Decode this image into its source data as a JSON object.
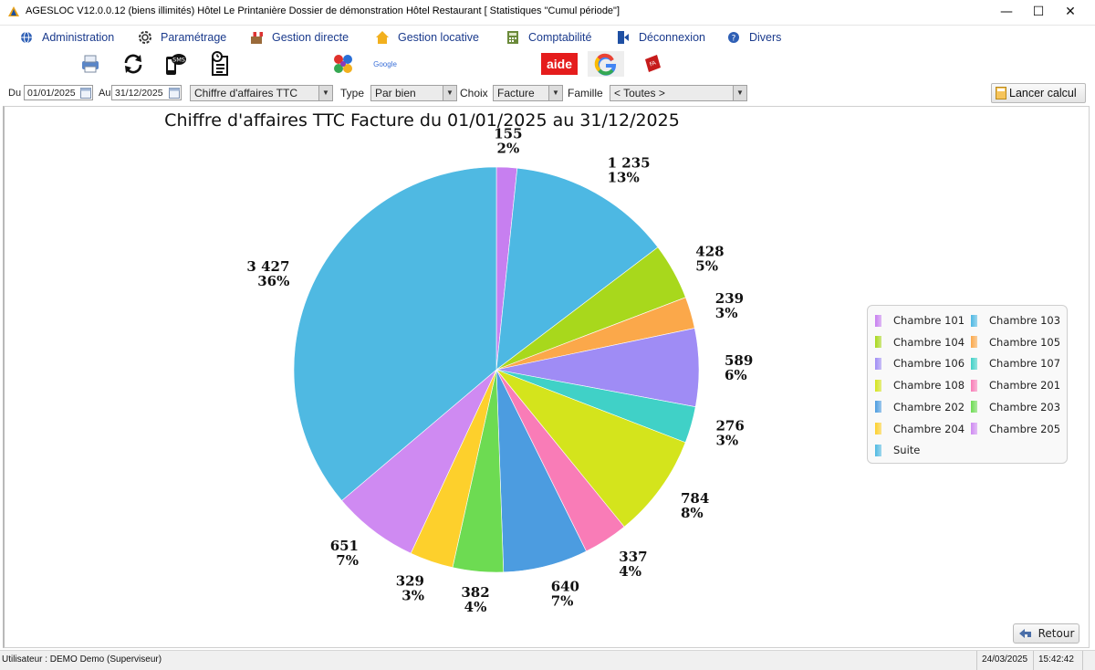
{
  "window": {
    "title": "AGESLOC V12.0.0.12 (biens illimités)   Hôtel Le Printanière   Dossier de démonstration Hôtel Restaurant   [ Statistiques \"Cumul période\"]",
    "minimize": "—",
    "maximize": "☐",
    "close": "✕"
  },
  "menu": [
    {
      "label": "Administration",
      "icon": "globe-icon"
    },
    {
      "label": "Paramétrage",
      "icon": "gear-icon"
    },
    {
      "label": "Gestion directe",
      "icon": "store-icon"
    },
    {
      "label": "Gestion locative",
      "icon": "house-icon"
    },
    {
      "label": "Comptabilité",
      "icon": "calculator-icon"
    },
    {
      "label": "Déconnexion",
      "icon": "logout-icon"
    },
    {
      "label": "Divers",
      "icon": "help-icon"
    }
  ],
  "toolbar": {
    "sms_label": "SMS",
    "google_label": "Google",
    "aide_label": "aide",
    "fa_label": "FA"
  },
  "filters": {
    "du_label": "Du",
    "du_value": "01/01/2025",
    "au_label": "Au",
    "au_value": "31/12/2025",
    "indicator": "Chiffre d'affaires TTC",
    "type_label": "Type",
    "type_value": "Par bien",
    "choix_label": "Choix",
    "choix_value": "Facture",
    "famille_label": "Famille",
    "famille_value": "< Toutes >",
    "run_label": "Lancer calcul"
  },
  "chart_data": {
    "type": "pie",
    "title": "Chiffre d'affaires TTC Facture du 01/01/2025 au 31/12/2025",
    "legend_position": "right",
    "slices": [
      {
        "name": "Chambre 101",
        "value": 155,
        "value_label": "155",
        "pct_label": "2%",
        "color": "#c77ff0"
      },
      {
        "name": "Chambre 103",
        "value": 1235,
        "value_label": "1 235",
        "pct_label": "13%",
        "color": "#4db8e3"
      },
      {
        "name": "Chambre 104",
        "value": 428,
        "value_label": "428",
        "pct_label": "5%",
        "color": "#a8d81c"
      },
      {
        "name": "Chambre 105",
        "value": 239,
        "value_label": "239",
        "pct_label": "3%",
        "color": "#fba84a"
      },
      {
        "name": "Chambre 106",
        "value": 589,
        "value_label": "589",
        "pct_label": "6%",
        "color": "#9f8cf5"
      },
      {
        "name": "Chambre 107",
        "value": 276,
        "value_label": "276",
        "pct_label": "3%",
        "color": "#40d1c7"
      },
      {
        "name": "Chambre 108",
        "value": 784,
        "value_label": "784",
        "pct_label": "8%",
        "color": "#d4e41c"
      },
      {
        "name": "Chambre 201",
        "value": 337,
        "value_label": "337",
        "pct_label": "4%",
        "color": "#f97cb7"
      },
      {
        "name": "Chambre 202",
        "value": 640,
        "value_label": "640",
        "pct_label": "7%",
        "color": "#4c9ce0"
      },
      {
        "name": "Chambre 203",
        "value": 382,
        "value_label": "382",
        "pct_label": "4%",
        "color": "#6ddb52"
      },
      {
        "name": "Chambre 204",
        "value": 329,
        "value_label": "329",
        "pct_label": "3%",
        "color": "#fdd02c"
      },
      {
        "name": "Chambre 205",
        "value": 651,
        "value_label": "651",
        "pct_label": "7%",
        "color": "#cf8af2"
      },
      {
        "name": "Suite",
        "value": 3427,
        "value_label": "3 427",
        "pct_label": "36%",
        "color": "#4fb9e2"
      }
    ]
  },
  "retour_label": "Retour",
  "status": {
    "user": "Utilisateur : DEMO Demo (Superviseur)",
    "date": "24/03/2025",
    "time": "15:42:42"
  }
}
